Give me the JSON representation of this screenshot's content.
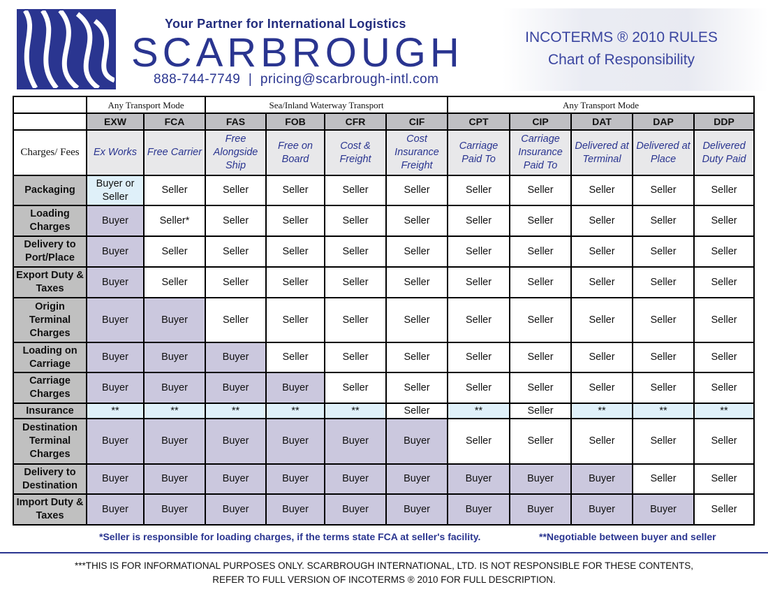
{
  "header": {
    "tagline": "Your Partner for International Logistics",
    "brand": "SCARBROUGH",
    "contact": "888-744-7749  |  pricing@scarbrough-intl.com",
    "title_line1": "INCOTERMS ® 2010 RULES",
    "title_line2": "Chart of Responsibility"
  },
  "colors": {
    "brand": "#2a3590",
    "buyer": "#cbc8de",
    "negotiable": "#dff0f9",
    "seller": "#ffffff",
    "header_gray": "#bfbfc3",
    "label_gray": "#c0c0c0"
  },
  "table": {
    "groups": [
      {
        "label": "Any Transport Mode",
        "span": 2
      },
      {
        "label": "Sea/Inland Waterway Transport",
        "span": 4
      },
      {
        "label": "Any Transport Mode",
        "span": 5
      }
    ],
    "corner_label": "Charges/ Fees",
    "terms": [
      {
        "code": "EXW",
        "name": "Ex Works"
      },
      {
        "code": "FCA",
        "name": "Free Carrier"
      },
      {
        "code": "FAS",
        "name": "Free Alongside Ship"
      },
      {
        "code": "FOB",
        "name": "Free on Board"
      },
      {
        "code": "CFR",
        "name": "Cost & Freight"
      },
      {
        "code": "CIF",
        "name": "Cost Insurance Freight"
      },
      {
        "code": "CPT",
        "name": "Carriage Paid To"
      },
      {
        "code": "CIP",
        "name": "Carriage Insurance Paid To"
      },
      {
        "code": "DAT",
        "name": "Delivered at Terminal"
      },
      {
        "code": "DAP",
        "name": "Delivered at Place"
      },
      {
        "code": "DDP",
        "name": "Delivered Duty Paid"
      }
    ],
    "rows": [
      {
        "label": "Packaging",
        "cells": [
          "Buyer or Seller",
          "Seller",
          "Seller",
          "Seller",
          "Seller",
          "Seller",
          "Seller",
          "Seller",
          "Seller",
          "Seller",
          "Seller"
        ]
      },
      {
        "label": "Loading Charges",
        "cells": [
          "Buyer",
          "Seller*",
          "Seller",
          "Seller",
          "Seller",
          "Seller",
          "Seller",
          "Seller",
          "Seller",
          "Seller",
          "Seller"
        ]
      },
      {
        "label": "Delivery to Port/Place",
        "cells": [
          "Buyer",
          "Seller",
          "Seller",
          "Seller",
          "Seller",
          "Seller",
          "Seller",
          "Seller",
          "Seller",
          "Seller",
          "Seller"
        ]
      },
      {
        "label": "Export Duty & Taxes",
        "cells": [
          "Buyer",
          "Seller",
          "Seller",
          "Seller",
          "Seller",
          "Seller",
          "Seller",
          "Seller",
          "Seller",
          "Seller",
          "Seller"
        ]
      },
      {
        "label": "Origin Terminal Charges",
        "cells": [
          "Buyer",
          "Buyer",
          "Seller",
          "Seller",
          "Seller",
          "Seller",
          "Seller",
          "Seller",
          "Seller",
          "Seller",
          "Seller"
        ]
      },
      {
        "label": "Loading on Carriage",
        "cells": [
          "Buyer",
          "Buyer",
          "Buyer",
          "Seller",
          "Seller",
          "Seller",
          "Seller",
          "Seller",
          "Seller",
          "Seller",
          "Seller"
        ]
      },
      {
        "label": "Carriage Charges",
        "cells": [
          "Buyer",
          "Buyer",
          "Buyer",
          "Buyer",
          "Seller",
          "Seller",
          "Seller",
          "Seller",
          "Seller",
          "Seller",
          "Seller"
        ]
      },
      {
        "label": "Insurance",
        "cells": [
          "**",
          "**",
          "**",
          "**",
          "**",
          "Seller",
          "**",
          "Seller",
          "**",
          "**",
          "**"
        ]
      },
      {
        "label": "Destination Terminal Charges",
        "cells": [
          "Buyer",
          "Buyer",
          "Buyer",
          "Buyer",
          "Buyer",
          "Buyer",
          "Seller",
          "Seller",
          "Seller",
          "Seller",
          "Seller"
        ]
      },
      {
        "label": "Delivery to Destination",
        "cells": [
          "Buyer",
          "Buyer",
          "Buyer",
          "Buyer",
          "Buyer",
          "Buyer",
          "Buyer",
          "Buyer",
          "Buyer",
          "Seller",
          "Seller"
        ]
      },
      {
        "label": "Import Duty & Taxes",
        "cells": [
          "Buyer",
          "Buyer",
          "Buyer",
          "Buyer",
          "Buyer",
          "Buyer",
          "Buyer",
          "Buyer",
          "Buyer",
          "Buyer",
          "Seller"
        ]
      }
    ]
  },
  "footnotes": {
    "seller_note": "*Seller is responsible for loading charges, if the terms state FCA at seller's facility.",
    "negotiable_note": "**Negotiable between buyer and seller",
    "disclaimer_line1": "***THIS IS FOR INFORMATIONAL PURPOSES ONLY. SCARBROUGH INTERNATIONAL, LTD. IS NOT RESPONSIBLE FOR THESE CONTENTS,",
    "disclaimer_line2": "REFER TO FULL VERSION OF INCOTERMS ® 2010 FOR FULL DESCRIPTION."
  }
}
